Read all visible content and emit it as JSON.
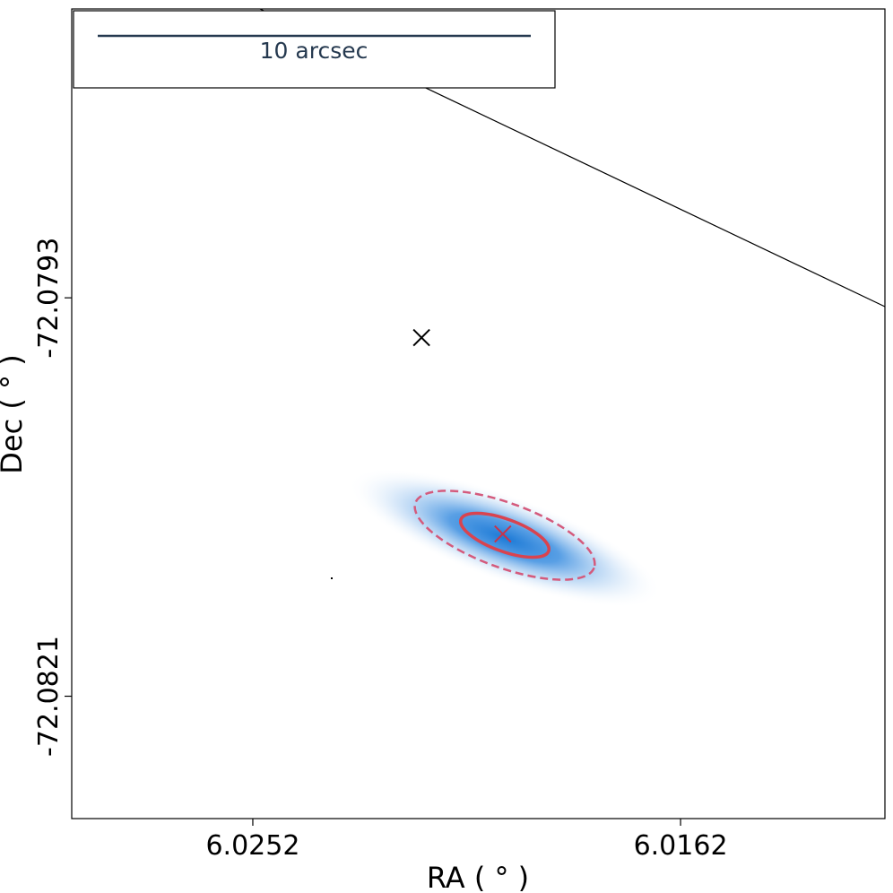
{
  "chart_data": {
    "type": "scatter",
    "xlabel": "RA ( ° )",
    "ylabel": "Dec ( ° )",
    "scale_bar_label": "10 arcsec",
    "x": [
      6.02165,
      6.01994
    ],
    "y": [
      -72.07958,
      -72.08096
    ],
    "colors": [
      "#000000",
      "#c8334a"
    ],
    "xlim": [
      6.02901,
      6.0119
    ],
    "ylim": [
      -72.08296,
      -72.07727
    ],
    "xticks": [
      6.0252,
      6.0162
    ],
    "yticks": [
      -72.0821,
      -72.0793
    ],
    "grid": false
  }
}
